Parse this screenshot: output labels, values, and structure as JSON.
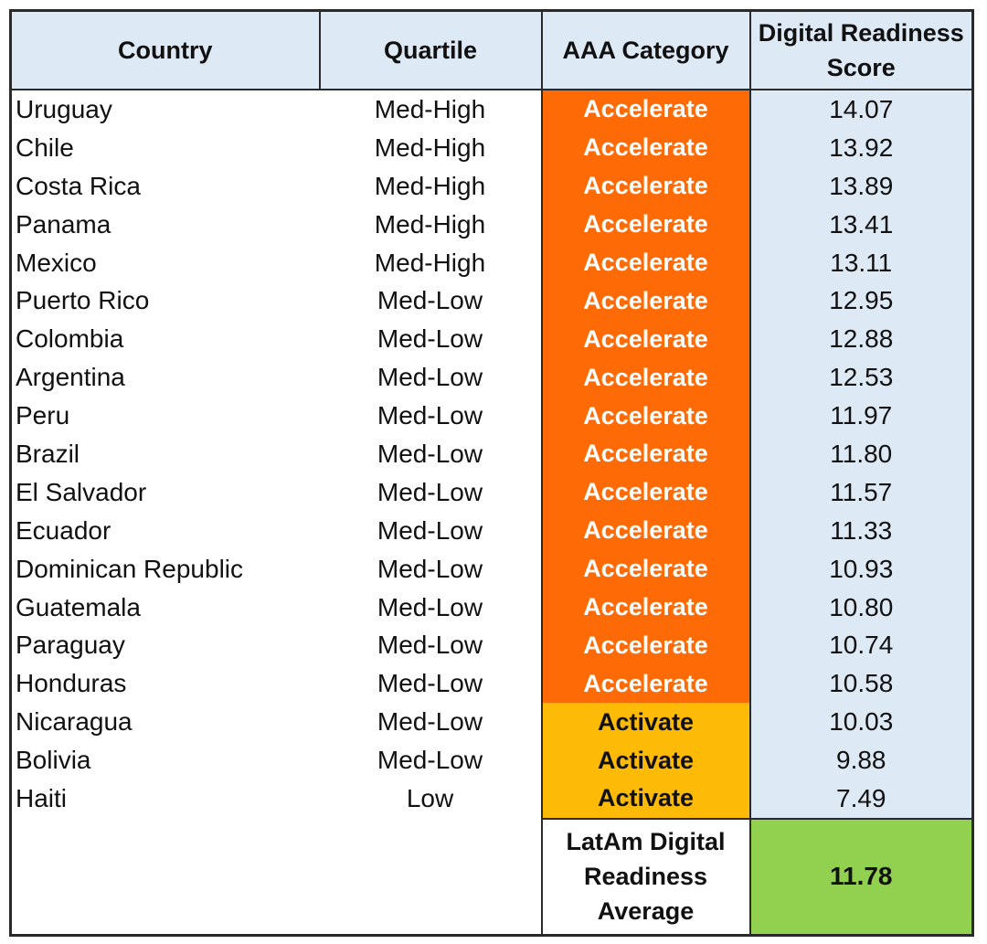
{
  "table": {
    "headers": {
      "country": "Country",
      "quartile": "Quartile",
      "category": "AAA Category",
      "score": "Digital Readiness Score"
    },
    "rows": [
      {
        "country": "Uruguay",
        "quartile": "Med-High",
        "category": "Accelerate",
        "score": "14.07"
      },
      {
        "country": "Chile",
        "quartile": "Med-High",
        "category": "Accelerate",
        "score": "13.92"
      },
      {
        "country": "Costa Rica",
        "quartile": "Med-High",
        "category": "Accelerate",
        "score": "13.89"
      },
      {
        "country": "Panama",
        "quartile": "Med-High",
        "category": "Accelerate",
        "score": "13.41"
      },
      {
        "country": "Mexico",
        "quartile": "Med-High",
        "category": "Accelerate",
        "score": "13.11"
      },
      {
        "country": "Puerto Rico",
        "quartile": "Med-Low",
        "category": "Accelerate",
        "score": "12.95"
      },
      {
        "country": "Colombia",
        "quartile": "Med-Low",
        "category": "Accelerate",
        "score": "12.88"
      },
      {
        "country": "Argentina",
        "quartile": "Med-Low",
        "category": "Accelerate",
        "score": "12.53"
      },
      {
        "country": "Peru",
        "quartile": "Med-Low",
        "category": "Accelerate",
        "score": "11.97"
      },
      {
        "country": "Brazil",
        "quartile": "Med-Low",
        "category": "Accelerate",
        "score": "11.80"
      },
      {
        "country": "El Salvador",
        "quartile": "Med-Low",
        "category": "Accelerate",
        "score": "11.57"
      },
      {
        "country": "Ecuador",
        "quartile": "Med-Low",
        "category": "Accelerate",
        "score": "11.33"
      },
      {
        "country": "Dominican Republic",
        "quartile": "Med-Low",
        "category": "Accelerate",
        "score": "10.93"
      },
      {
        "country": "Guatemala",
        "quartile": "Med-Low",
        "category": "Accelerate",
        "score": "10.80"
      },
      {
        "country": "Paraguay",
        "quartile": "Med-Low",
        "category": "Accelerate",
        "score": "10.74"
      },
      {
        "country": "Honduras",
        "quartile": "Med-Low",
        "category": "Accelerate",
        "score": "10.58"
      },
      {
        "country": "Nicaragua",
        "quartile": "Med-Low",
        "category": "Activate",
        "score": "10.03"
      },
      {
        "country": "Bolivia",
        "quartile": "Med-Low",
        "category": "Activate",
        "score": "9.88"
      },
      {
        "country": "Haiti",
        "quartile": "Low",
        "category": "Activate",
        "score": "7.49"
      }
    ],
    "average": {
      "label": "LatAm Digital Readiness Average",
      "value": "11.78"
    }
  },
  "colors": {
    "header_bg": "#dde9f5",
    "accelerate": "#fe6a05",
    "activate": "#fdbb07",
    "score_bg": "#dde9f5",
    "average_bg": "#92d050",
    "border": "#2a2a2a"
  }
}
